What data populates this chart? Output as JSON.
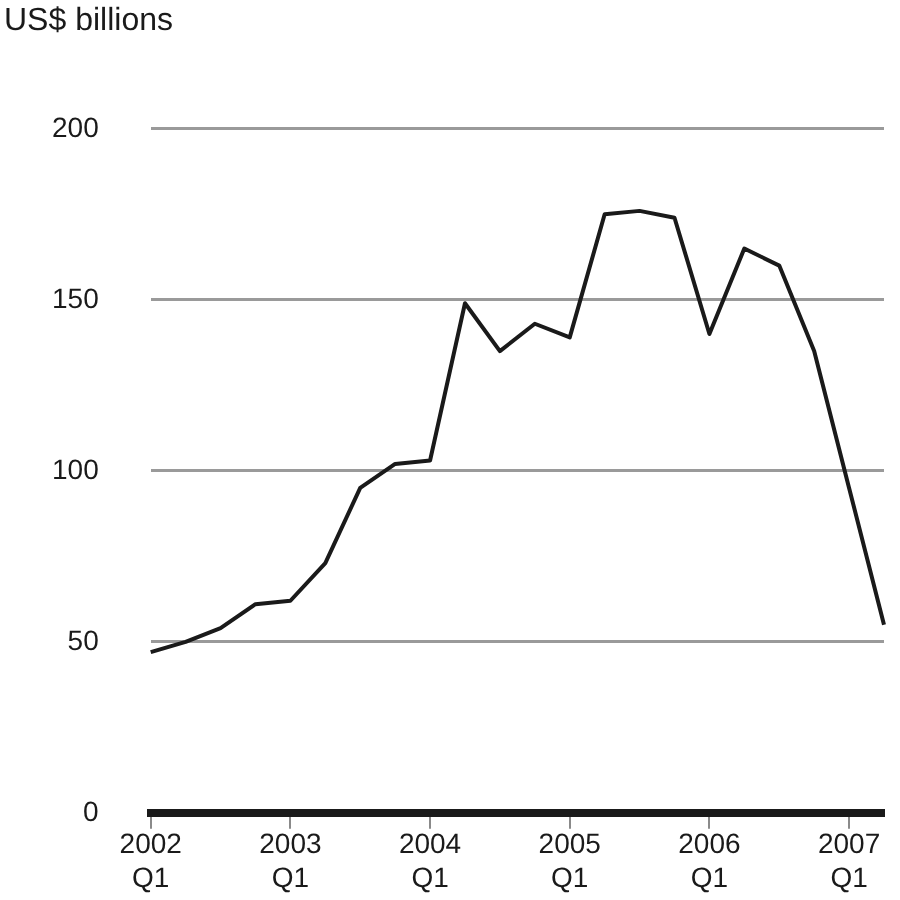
{
  "chart_data": {
    "type": "line",
    "ylabel": "US$ billions",
    "categories": [
      "2002 Q1",
      null,
      null,
      null,
      "2003 Q1",
      null,
      null,
      null,
      "2004 Q1",
      null,
      null,
      null,
      "2005 Q1",
      null,
      null,
      null,
      "2006 Q1",
      null,
      null,
      null,
      "2007 Q1",
      null
    ],
    "series": [
      {
        "color": "#1a1a1a",
        "values": [
          47,
          50,
          54,
          61,
          62,
          73,
          95,
          102,
          103,
          149,
          135,
          143,
          139,
          175,
          176,
          174,
          140,
          165,
          160,
          135,
          95,
          55
        ]
      }
    ],
    "ylim": [
      0,
      200
    ],
    "yticks": [
      0,
      50,
      100,
      150,
      200
    ],
    "grid": "y",
    "legend": false,
    "marker": "none",
    "line_style": "solid"
  }
}
